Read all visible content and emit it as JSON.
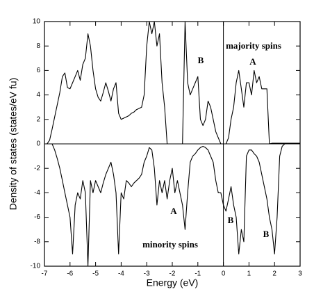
{
  "chart_data": {
    "type": "line",
    "xlabel": "Energy (eV)",
    "ylabel": "Density of states (states/eV fu)",
    "annotations": [
      "majority spins",
      "A",
      "B",
      "minority spins",
      "A",
      "B",
      "B"
    ],
    "x": [
      -7.0,
      -6.9,
      -6.8,
      -6.7,
      -6.6,
      -6.5,
      -6.4,
      -6.3,
      -6.2,
      -6.1,
      -6.0,
      -5.9,
      -5.8,
      -5.7,
      -5.6,
      -5.5,
      -5.4,
      -5.3,
      -5.2,
      -5.1,
      -5.0,
      -4.9,
      -4.8,
      -4.7,
      -4.6,
      -4.5,
      -4.4,
      -4.3,
      -4.2,
      -4.1,
      -4.0,
      -3.9,
      -3.8,
      -3.7,
      -3.6,
      -3.5,
      -3.4,
      -3.3,
      -3.2,
      -3.1,
      -3.0,
      -2.9,
      -2.8,
      -2.7,
      -2.6,
      -2.5,
      -2.4,
      -2.3,
      -2.2,
      -2.1,
      -2.0,
      -1.9,
      -1.8,
      -1.7,
      -1.6,
      -1.5,
      -1.4,
      -1.3,
      -1.2,
      -1.1,
      -1.0,
      -0.9,
      -0.8,
      -0.7,
      -0.6,
      -0.5,
      -0.4,
      -0.3,
      -0.2,
      -0.1,
      0.0,
      0.1,
      0.2,
      0.3,
      0.4,
      0.5,
      0.6,
      0.7,
      0.8,
      0.9,
      1.0,
      1.1,
      1.2,
      1.3,
      1.4,
      1.5,
      1.6,
      1.7,
      1.8,
      1.9,
      2.0,
      2.1,
      2.2,
      2.3,
      2.4,
      2.5,
      2.6,
      2.7,
      2.8,
      2.9,
      3.0
    ],
    "series": [
      {
        "name": "majority spins",
        "color": "#000000",
        "values": [
          0,
          0,
          0.3,
          1.2,
          2.2,
          3.2,
          4.2,
          5.5,
          5.8,
          4.6,
          4.5,
          5.0,
          5.5,
          6.0,
          5.2,
          6.5,
          7.0,
          9.0,
          8.0,
          6.0,
          4.5,
          3.8,
          3.5,
          4.2,
          5.0,
          4.3,
          3.5,
          4.5,
          5.0,
          2.5,
          2.0,
          2.1,
          2.2,
          2.3,
          2.5,
          2.6,
          2.8,
          2.9,
          3.0,
          4.0,
          8.0,
          10.0,
          9.0,
          10.0,
          8.0,
          9.0,
          5.0,
          3.0,
          0,
          0,
          0,
          0,
          0,
          0,
          0,
          10.0,
          5.0,
          4.0,
          4.5,
          5.0,
          5.5,
          2.0,
          1.5,
          2.0,
          3.5,
          3.0,
          2.0,
          1.0,
          0.5,
          0,
          0,
          0,
          0.5,
          2.0,
          3.0,
          5.0,
          6.0,
          4.5,
          3.0,
          5.0,
          5.0,
          4.0,
          6.0,
          5.0,
          5.5,
          4.5,
          4.5,
          4.5,
          0,
          0.05,
          0.05,
          0.05,
          0.05,
          0.05,
          0.05,
          0.05,
          0.05,
          0.05,
          0.05,
          0.05,
          0.05
        ]
      },
      {
        "name": "minority spins",
        "color": "#000000",
        "values": [
          0,
          0,
          0,
          0,
          -0.5,
          -1.2,
          -2.0,
          -3.0,
          -4.0,
          -5.0,
          -6.0,
          -9.0,
          -5.0,
          -4.0,
          -4.5,
          -3.0,
          -4.0,
          -10.0,
          -3.0,
          -4.0,
          -3.0,
          -3.5,
          -4.0,
          -3.2,
          -2.5,
          -2.0,
          -1.5,
          -2.5,
          -4.0,
          -9.0,
          -4.0,
          -4.5,
          -3.0,
          -3.2,
          -3.5,
          -3.2,
          -3.0,
          -2.8,
          -2.5,
          -1.5,
          -1.0,
          -0.3,
          -0.5,
          -2.0,
          -5.0,
          -3.0,
          -4.0,
          -3.0,
          -4.5,
          -3.0,
          -2.0,
          -4.0,
          -3.0,
          -4.0,
          -5.0,
          -7.0,
          -4.0,
          -1.5,
          -1.0,
          -0.8,
          -0.5,
          -0.3,
          -0.2,
          -0.3,
          -0.5,
          -1.0,
          -1.5,
          -3.0,
          -4.0,
          -4.0,
          -5.0,
          -5.5,
          -4.5,
          -3.5,
          -5.0,
          -6.0,
          -9.0,
          -7.0,
          -8.0,
          -1.0,
          -0.5,
          -0.5,
          -0.8,
          -1.0,
          -1.5,
          -2.5,
          -3.5,
          -4.5,
          -6.0,
          -7.0,
          -9.0,
          -6.0,
          -1.0,
          -0.2,
          0,
          0,
          0,
          0,
          0,
          0,
          0
        ]
      }
    ],
    "xlim": [
      -7,
      3
    ],
    "xticks": [
      -7,
      -6,
      -5,
      -4,
      -3,
      -2,
      -1,
      0,
      1,
      2,
      3
    ],
    "ylim": [
      -10,
      10
    ],
    "yticks": [
      -10,
      -8,
      -6,
      -4,
      -2,
      0,
      2,
      4,
      6,
      8,
      10
    ]
  }
}
